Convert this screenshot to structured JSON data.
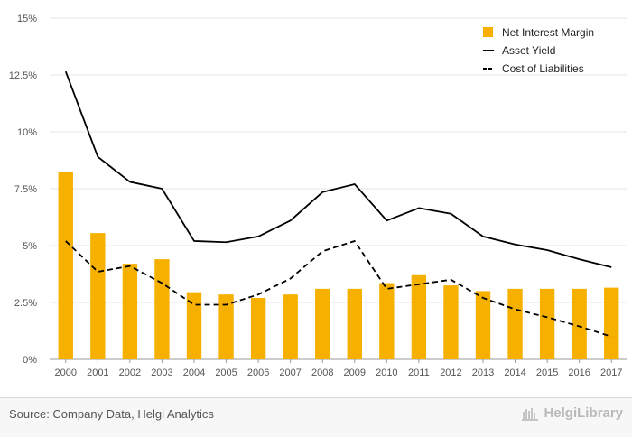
{
  "chart_data": {
    "type": "bar",
    "categories": [
      "2000",
      "2001",
      "2002",
      "2003",
      "2004",
      "2005",
      "2006",
      "2007",
      "2008",
      "2009",
      "2010",
      "2011",
      "2012",
      "2013",
      "2014",
      "2015",
      "2016",
      "2017"
    ],
    "series": [
      {
        "name": "Net Interest Margin",
        "type": "bar",
        "color": "#f6b000",
        "values": [
          8.25,
          5.55,
          4.2,
          4.4,
          2.95,
          2.85,
          2.7,
          2.85,
          3.1,
          3.1,
          3.35,
          3.7,
          3.25,
          3.0,
          3.1,
          3.1,
          3.1,
          3.15
        ]
      },
      {
        "name": "Asset Yield",
        "type": "line",
        "color": "#000000",
        "dash": "solid",
        "values": [
          12.65,
          8.9,
          7.8,
          7.5,
          5.2,
          5.15,
          5.4,
          6.1,
          7.35,
          7.7,
          6.1,
          6.65,
          6.4,
          5.4,
          5.05,
          4.8,
          4.4,
          4.05
        ]
      },
      {
        "name": "Cost of Liabilities",
        "type": "line",
        "color": "#000000",
        "dash": "dashed",
        "values": [
          5.2,
          3.85,
          4.1,
          3.35,
          2.4,
          2.4,
          2.85,
          3.55,
          4.75,
          5.2,
          3.1,
          3.3,
          3.5,
          2.7,
          2.2,
          1.85,
          1.45,
          1.0
        ]
      }
    ],
    "y_ticks": [
      "0%",
      "2.5%",
      "5%",
      "7.5%",
      "10%",
      "12.5%",
      "15%"
    ],
    "ylim": [
      0,
      15
    ],
    "grid": true,
    "legend_position": "top-right",
    "title": "",
    "xlabel": "",
    "ylabel": ""
  },
  "footer": {
    "source": "Source: Company Data, Helgi Analytics",
    "logo_text": "HelgiLibrary"
  }
}
